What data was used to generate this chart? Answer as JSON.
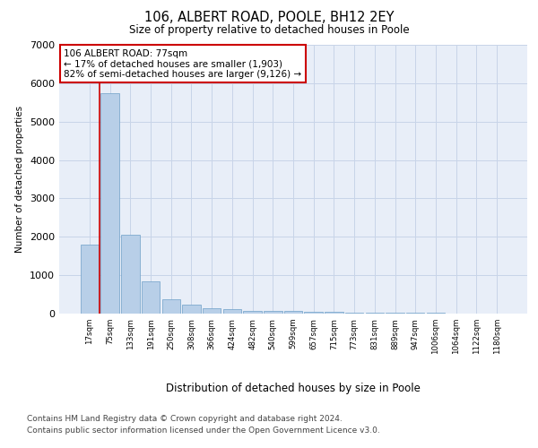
{
  "title": "106, ALBERT ROAD, POOLE, BH12 2EY",
  "subtitle": "Size of property relative to detached houses in Poole",
  "xlabel": "Distribution of detached houses by size in Poole",
  "ylabel": "Number of detached properties",
  "bar_values": [
    1800,
    5750,
    2050,
    830,
    380,
    230,
    130,
    110,
    75,
    60,
    60,
    50,
    40,
    30,
    25,
    20,
    15,
    12,
    10,
    8,
    6
  ],
  "bar_labels": [
    "17sqm",
    "75sqm",
    "133sqm",
    "191sqm",
    "250sqm",
    "308sqm",
    "366sqm",
    "424sqm",
    "482sqm",
    "540sqm",
    "599sqm",
    "657sqm",
    "715sqm",
    "773sqm",
    "831sqm",
    "889sqm",
    "947sqm",
    "1006sqm",
    "1064sqm",
    "1122sqm",
    "1180sqm"
  ],
  "bar_color": "#b8cfe8",
  "bar_edge_color": "#6ea0c8",
  "highlight_bar_index": 1,
  "highlight_line_color": "#cc0000",
  "annotation_text": "106 ALBERT ROAD: 77sqm\n← 17% of detached houses are smaller (1,903)\n82% of semi-detached houses are larger (9,126) →",
  "annotation_box_color": "#ffffff",
  "annotation_box_edge_color": "#cc0000",
  "ylim": [
    0,
    7000
  ],
  "yticks": [
    0,
    1000,
    2000,
    3000,
    4000,
    5000,
    6000,
    7000
  ],
  "grid_color": "#c8d4e8",
  "background_color": "#e8eef8",
  "footer_line1": "Contains HM Land Registry data © Crown copyright and database right 2024.",
  "footer_line2": "Contains public sector information licensed under the Open Government Licence v3.0."
}
